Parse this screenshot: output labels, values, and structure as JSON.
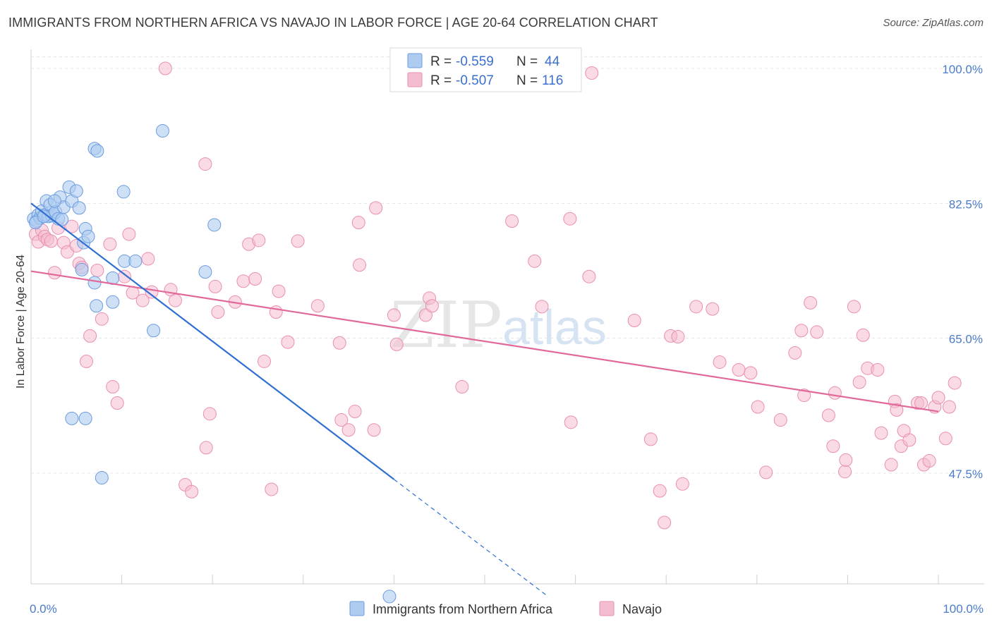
{
  "header": {
    "title": "IMMIGRANTS FROM NORTHERN AFRICA VS NAVAJO IN LABOR FORCE | AGE 20-64 CORRELATION CHART",
    "source": "Source: ZipAtlas.com"
  },
  "watermark": {
    "zip": "ZIP",
    "atlas": "atlas"
  },
  "legend_box": {
    "rows": [
      {
        "r_label": "R =",
        "r_value": "-0.559",
        "n_label": "N =",
        "n_value": "44"
      },
      {
        "r_label": "R =",
        "r_value": "-0.507",
        "n_label": "N =",
        "n_value": "116"
      }
    ]
  },
  "colors": {
    "blue_fill": "#aecbf0",
    "blue_stroke": "#6c9be0",
    "blue_line": "#2f6fd4",
    "pink_fill": "#f4bcd0",
    "pink_stroke": "#ea8fb0",
    "pink_line": "#e0699a"
  },
  "chart_data": {
    "type": "scatter",
    "title": "IMMIGRANTS FROM NORTHERN AFRICA VS NAVAJO IN LABOR FORCE | AGE 20-64 CORRELATION CHART",
    "xlabel": "",
    "ylabel": "In Labor Force | Age 20-64",
    "xlim": [
      0,
      100
    ],
    "ylim": [
      30,
      102
    ],
    "y_ticks": [
      {
        "value": 100,
        "label": "100.0%"
      },
      {
        "value": 82.5,
        "label": "82.5%"
      },
      {
        "value": 65,
        "label": "65.0%"
      },
      {
        "value": 47.5,
        "label": "47.5%"
      }
    ],
    "x_ticks": [
      {
        "value": 0,
        "label": "0.0%"
      },
      {
        "value": 100,
        "label": "100.0%"
      }
    ],
    "series": [
      {
        "name": "Immigrants from Northern Africa",
        "color": "blue",
        "trend": {
          "x0": 0,
          "y0": 82.5,
          "x1": 40,
          "y1": 46.7,
          "dash_to_x": 57
        },
        "points": [
          [
            0.3,
            80.5
          ],
          [
            0.6,
            80.2
          ],
          [
            0.8,
            81.0
          ],
          [
            1.0,
            80.6
          ],
          [
            1.2,
            81.5
          ],
          [
            1.5,
            81.0
          ],
          [
            1.7,
            82.8
          ],
          [
            1.9,
            80.8
          ],
          [
            2.1,
            82.3
          ],
          [
            2.3,
            80.9
          ],
          [
            2.5,
            81.1
          ],
          [
            2.7,
            81.4
          ],
          [
            3.0,
            80.5
          ],
          [
            3.2,
            83.3
          ],
          [
            3.4,
            80.4
          ],
          [
            3.6,
            82.0
          ],
          [
            4.2,
            84.6
          ],
          [
            4.5,
            82.8
          ],
          [
            5.0,
            84.1
          ],
          [
            5.3,
            81.9
          ],
          [
            5.6,
            73.9
          ],
          [
            5.8,
            77.4
          ],
          [
            6.0,
            79.2
          ],
          [
            6.3,
            78.2
          ],
          [
            7.0,
            89.6
          ],
          [
            7.3,
            89.3
          ],
          [
            7.0,
            72.2
          ],
          [
            7.2,
            69.2
          ],
          [
            9.0,
            69.7
          ],
          [
            9.0,
            72.8
          ],
          [
            10.2,
            84.0
          ],
          [
            10.3,
            75.0
          ],
          [
            11.5,
            75.0
          ],
          [
            13.5,
            66.0
          ],
          [
            14.5,
            91.9
          ],
          [
            19.2,
            73.6
          ],
          [
            20.2,
            79.7
          ],
          [
            4.5,
            54.6
          ],
          [
            6.0,
            54.6
          ],
          [
            7.8,
            46.9
          ],
          [
            39.5,
            31.5
          ],
          [
            0.5,
            80.0
          ],
          [
            1.4,
            80.8
          ],
          [
            2.6,
            82.8
          ]
        ]
      },
      {
        "name": "Navajo",
        "color": "pink",
        "trend": {
          "x0": 0,
          "y0": 73.7,
          "x1": 100,
          "y1": 55.5
        },
        "points": [
          [
            0.5,
            78.5
          ],
          [
            0.8,
            77.5
          ],
          [
            1.2,
            79.0
          ],
          [
            1.5,
            78.2
          ],
          [
            1.8,
            77.8
          ],
          [
            2.2,
            77.6
          ],
          [
            2.6,
            73.5
          ],
          [
            3.0,
            79.3
          ],
          [
            3.6,
            77.4
          ],
          [
            4.0,
            76.2
          ],
          [
            4.5,
            79.5
          ],
          [
            5.0,
            77.0
          ],
          [
            5.3,
            74.7
          ],
          [
            5.6,
            74.2
          ],
          [
            6.1,
            62.0
          ],
          [
            6.5,
            65.3
          ],
          [
            7.3,
            73.8
          ],
          [
            7.8,
            67.5
          ],
          [
            8.7,
            77.2
          ],
          [
            9.0,
            58.7
          ],
          [
            9.5,
            56.6
          ],
          [
            10.3,
            73.0
          ],
          [
            10.8,
            78.5
          ],
          [
            11.2,
            70.9
          ],
          [
            12.3,
            69.9
          ],
          [
            12.9,
            75.3
          ],
          [
            13.3,
            71.0
          ],
          [
            14.8,
            100.0
          ],
          [
            15.4,
            71.3
          ],
          [
            15.9,
            69.9
          ],
          [
            17.0,
            46.0
          ],
          [
            17.7,
            45.1
          ],
          [
            19.2,
            87.6
          ],
          [
            19.3,
            50.8
          ],
          [
            19.7,
            55.2
          ],
          [
            20.3,
            71.7
          ],
          [
            20.6,
            68.4
          ],
          [
            22.5,
            69.7
          ],
          [
            23.4,
            72.4
          ],
          [
            24.0,
            77.2
          ],
          [
            24.7,
            72.7
          ],
          [
            25.1,
            77.7
          ],
          [
            25.7,
            62.0
          ],
          [
            26.5,
            45.4
          ],
          [
            27.0,
            68.4
          ],
          [
            27.3,
            71.1
          ],
          [
            28.3,
            64.5
          ],
          [
            29.4,
            77.6
          ],
          [
            31.6,
            69.2
          ],
          [
            34.0,
            64.4
          ],
          [
            34.2,
            54.4
          ],
          [
            35.0,
            53.1
          ],
          [
            35.7,
            55.5
          ],
          [
            36.1,
            80.0
          ],
          [
            36.2,
            74.5
          ],
          [
            37.8,
            53.1
          ],
          [
            38.0,
            81.9
          ],
          [
            40.0,
            68.0
          ],
          [
            40.3,
            64.2
          ],
          [
            43.5,
            68.0
          ],
          [
            43.9,
            70.2
          ],
          [
            44.2,
            69.2
          ],
          [
            47.5,
            58.7
          ],
          [
            53.0,
            80.2
          ],
          [
            55.5,
            75.0
          ],
          [
            56.3,
            69.1
          ],
          [
            59.4,
            80.5
          ],
          [
            59.5,
            54.1
          ],
          [
            61.5,
            73.0
          ],
          [
            66.5,
            67.3
          ],
          [
            68.3,
            51.9
          ],
          [
            69.3,
            45.2
          ],
          [
            69.8,
            41.1
          ],
          [
            70.5,
            65.3
          ],
          [
            71.3,
            65.2
          ],
          [
            71.8,
            46.1
          ],
          [
            73.3,
            69.1
          ],
          [
            75.1,
            68.8
          ],
          [
            75.9,
            61.9
          ],
          [
            78.0,
            60.9
          ],
          [
            79.3,
            60.5
          ],
          [
            80.1,
            56.1
          ],
          [
            81.0,
            47.6
          ],
          [
            82.6,
            54.4
          ],
          [
            84.2,
            63.1
          ],
          [
            85.2,
            57.6
          ],
          [
            85.9,
            69.6
          ],
          [
            86.6,
            65.8
          ],
          [
            87.9,
            55.0
          ],
          [
            88.4,
            51.0
          ],
          [
            88.6,
            57.9
          ],
          [
            89.7,
            47.7
          ],
          [
            89.8,
            49.2
          ],
          [
            90.7,
            69.1
          ],
          [
            91.3,
            59.3
          ],
          [
            91.7,
            65.4
          ],
          [
            92.2,
            61.1
          ],
          [
            93.3,
            60.9
          ],
          [
            93.7,
            52.7
          ],
          [
            94.8,
            48.6
          ],
          [
            95.2,
            56.8
          ],
          [
            95.4,
            55.7
          ],
          [
            95.9,
            51.0
          ],
          [
            96.2,
            53.0
          ],
          [
            96.8,
            51.8
          ],
          [
            97.7,
            56.6
          ],
          [
            98.1,
            56.6
          ],
          [
            98.4,
            48.6
          ],
          [
            99.0,
            49.1
          ],
          [
            99.6,
            56.1
          ],
          [
            100.0,
            57.3
          ],
          [
            100.8,
            52.0
          ],
          [
            101.2,
            56.1
          ],
          [
            101.8,
            59.2
          ],
          [
            61.8,
            99.4
          ],
          [
            84.9,
            66.0
          ]
        ]
      }
    ]
  },
  "bottom_legend": {
    "items": [
      {
        "label": "Immigrants from Northern Africa"
      },
      {
        "label": "Navajo"
      }
    ]
  }
}
